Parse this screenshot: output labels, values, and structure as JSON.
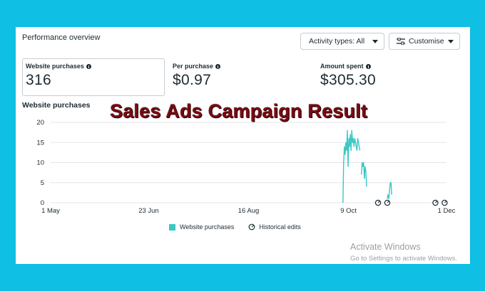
{
  "panel": {
    "title": "Performance overview",
    "activity_button": "Activity types: All",
    "customise_button": "Customise"
  },
  "metrics": [
    {
      "label": "Website purchases",
      "value": "316"
    },
    {
      "label": "Per purchase",
      "value": "$0.97"
    },
    {
      "label": "Amount spent",
      "value": "$305.30"
    }
  ],
  "overlay_title": "Sales Ads Campaign Result",
  "chart_data": {
    "type": "line",
    "title": "Website purchases",
    "y_ticks": [
      "20",
      "15",
      "10",
      "5",
      "0"
    ],
    "ylim": [
      0,
      20
    ],
    "x_ticks": [
      "1 May",
      "23 Jun",
      "16 Aug",
      "9 Oct",
      "1 Dec"
    ],
    "grid": true,
    "series": [
      {
        "name": "Website purchases",
        "color": "#3cc7c3",
        "segments": [
          [
            [
              0,
              0
            ],
            [
              0.4,
              10
            ],
            [
              0.8,
              14
            ],
            [
              1.2,
              12
            ],
            [
              1.6,
              15
            ],
            [
              2,
              13
            ],
            [
              2.4,
              18
            ],
            [
              2.8,
              9
            ],
            [
              3.2,
              16
            ],
            [
              3.6,
              14
            ],
            [
              4,
              17
            ],
            [
              4.4,
              13
            ],
            [
              4.8,
              18
            ],
            [
              5.2,
              15
            ],
            [
              5.6,
              16
            ],
            [
              6,
              14
            ],
            [
              6.4,
              16
            ],
            [
              6.8,
              15
            ],
            [
              7.2,
              14
            ],
            [
              7.6,
              13
            ],
            [
              8,
              16
            ],
            [
              8.4,
              15
            ],
            [
              8.8,
              14
            ],
            [
              9.2,
              13
            ]
          ],
          [
            [
              10,
              7
            ],
            [
              10.4,
              10
            ],
            [
              10.8,
              9
            ],
            [
              11.2,
              10
            ],
            [
              11.6,
              6
            ],
            [
              12,
              9
            ],
            [
              12.4,
              8
            ],
            [
              12.8,
              4
            ]
          ],
          [
            [
              24,
              1
            ],
            [
              24.4,
              2
            ],
            [
              24.8,
              1
            ],
            [
              25.2,
              3
            ],
            [
              25.6,
              5
            ],
            [
              26,
              5
            ],
            [
              26.4,
              2
            ]
          ]
        ],
        "x_offset_days": 158
      }
    ],
    "historical_edits_days": [
      177,
      182,
      208,
      213
    ],
    "legend": [
      "Website purchases",
      "Historical edits"
    ]
  },
  "watermark": {
    "line1": "Activate Windows",
    "line2": "Go to Settings to activate Windows."
  }
}
